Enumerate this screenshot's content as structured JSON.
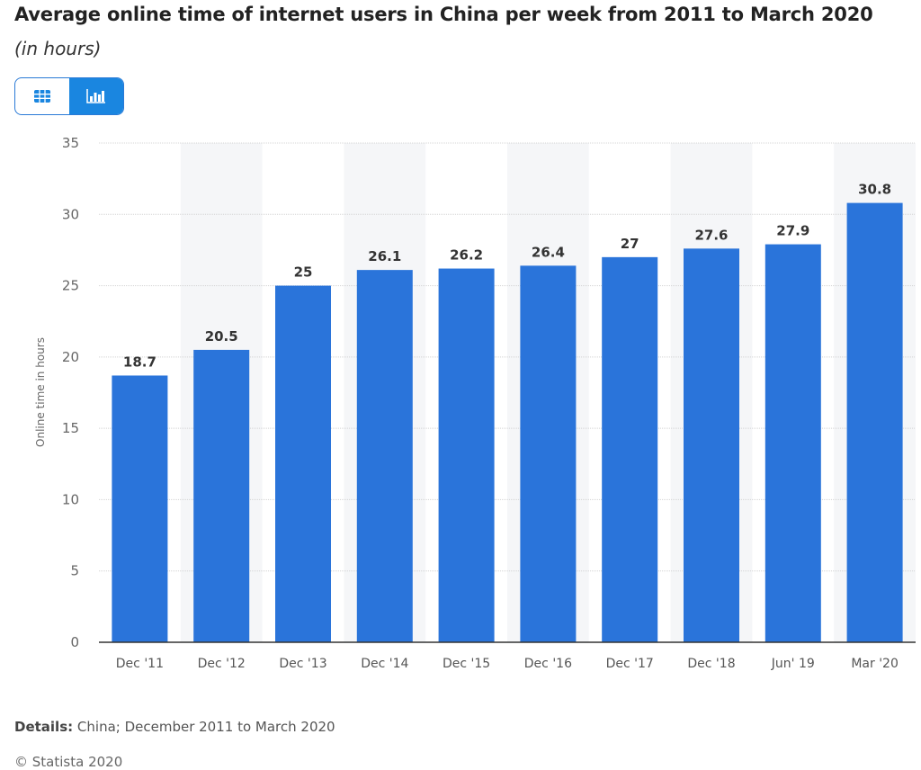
{
  "title": "Average online time of internet users in China per week from 2011 to March 2020",
  "subtitle": "(in hours)",
  "toggle": {
    "table_icon": "table-icon",
    "chart_icon": "bar-chart-icon",
    "active": "chart"
  },
  "details_label": "Details:",
  "details_text": "China; December 2011 to March 2020",
  "copyright": "© Statista 2020",
  "chart_data": {
    "type": "bar",
    "title": "Average online time of internet users in China per week from 2011 to March 2020",
    "subtitle": "(in hours)",
    "xlabel": "",
    "ylabel": "Online time in hours",
    "categories": [
      "Dec '11",
      "Dec '12",
      "Dec '13",
      "Dec '14",
      "Dec '15",
      "Dec '16",
      "Dec '17",
      "Dec '18",
      "Jun' 19",
      "Mar '20"
    ],
    "values": [
      18.7,
      20.5,
      25,
      26.1,
      26.2,
      26.4,
      27,
      27.6,
      27.9,
      30.8
    ],
    "ylim": [
      0,
      35
    ],
    "yticks": [
      0,
      5,
      10,
      15,
      20,
      25,
      30,
      35
    ],
    "grid": true,
    "bar_color": "#2a74da",
    "data_labels": true
  }
}
